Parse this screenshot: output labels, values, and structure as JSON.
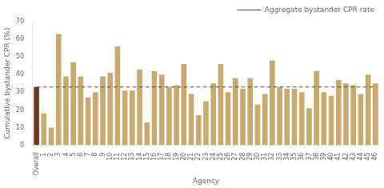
{
  "chart_data": {
    "type": "bar",
    "xlabel": "Agency",
    "ylabel": "Cumulative bystander CPR (%)",
    "categories": [
      "Overall",
      "1",
      "2",
      "3",
      "4",
      "5",
      "6",
      "7",
      "8",
      "9",
      "10",
      "11",
      "12",
      "13",
      "14",
      "15",
      "16",
      "17",
      "18",
      "19",
      "20",
      "21",
      "22",
      "23",
      "24",
      "25",
      "26",
      "27",
      "28",
      "29",
      "30",
      "31",
      "32",
      "33",
      "34",
      "35",
      "36",
      "37",
      "38",
      "39",
      "40",
      "41",
      "42",
      "43",
      "44",
      "45",
      "46"
    ],
    "series": [
      {
        "type": "bar",
        "values": [
          33,
          18,
          10,
          63,
          39,
          47,
          39,
          27,
          30,
          39,
          41,
          56,
          31,
          31,
          43,
          13,
          42,
          40,
          33,
          34,
          46,
          29,
          17,
          25,
          35,
          46,
          30,
          38,
          32,
          38,
          23,
          29,
          48,
          33,
          32,
          32,
          30,
          21,
          42,
          30,
          28,
          37,
          35,
          34,
          29,
          40,
          35
        ],
        "colors": [
          "#6B3A1F",
          "#C8A96E",
          "#C8A96E",
          "#C8A96E",
          "#C8A96E",
          "#C8A96E",
          "#C8A96E",
          "#C8A96E",
          "#C8A96E",
          "#C8A96E",
          "#C8A96E",
          "#C8A96E",
          "#C8A96E",
          "#C8A96E",
          "#C8A96E",
          "#C8A96E",
          "#C8A96E",
          "#C8A96E",
          "#C8A96E",
          "#C8A96E",
          "#C8A96E",
          "#C8A96E",
          "#C8A96E",
          "#C8A96E",
          "#C8A96E",
          "#C8A96E",
          "#C8A96E",
          "#C8A96E",
          "#C8A96E",
          "#C8A96E",
          "#C8A96E",
          "#C8A96E",
          "#C8A96E",
          "#C8A96E",
          "#C8A96E",
          "#C8A96E",
          "#C8A96E",
          "#C8A96E",
          "#C8A96E",
          "#C8A96E",
          "#C8A96E",
          "#C8A96E",
          "#C8A96E",
          "#C8A96E",
          "#C8A96E",
          "#C8A96E",
          "#C8A96E"
        ]
      },
      {
        "name": "Aggregate bystander CPR rate",
        "type": "line",
        "line_style": "dashed",
        "color": "#555555",
        "values": [
          33,
          33,
          33,
          33,
          33,
          33,
          33,
          33,
          33,
          33,
          33,
          33,
          33,
          33,
          33,
          33,
          33,
          33,
          33,
          33,
          33,
          33,
          33,
          33,
          33,
          33,
          33,
          33,
          33,
          33,
          33,
          33,
          33,
          33,
          33,
          33,
          33,
          33,
          33,
          33,
          33,
          33,
          33,
          33,
          33,
          33,
          33
        ]
      }
    ],
    "ylim": [
      0,
      70
    ],
    "yticks": [
      0,
      10,
      20,
      30,
      40,
      50,
      60,
      70
    ],
    "grid": false,
    "legend": "upper right"
  }
}
